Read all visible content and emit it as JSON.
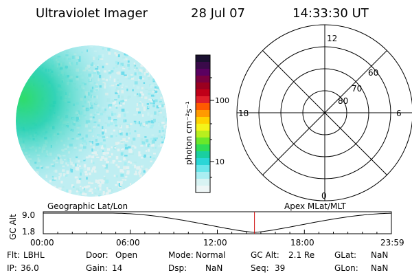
{
  "header": {
    "instrument": "Ultraviolet Imager",
    "date": "28 Jul 07",
    "time": "14:33:30 UT"
  },
  "colorbar": {
    "label": "photon cm⁻²s⁻¹",
    "ticks": [
      "100",
      "10"
    ],
    "colors": [
      "#1a1030",
      "#3a0a4a",
      "#5a0060",
      "#7a0040",
      "#9a0020",
      "#c00018",
      "#e0202a",
      "#ff5a00",
      "#ff9a00",
      "#ffd200",
      "#f4f41a",
      "#b8ef1e",
      "#6ae82a",
      "#2fdd55",
      "#1acfa0",
      "#2ad6d6",
      "#6ae6ea",
      "#aaeef2",
      "#d8f3f3",
      "#eef6f6"
    ]
  },
  "polar": {
    "lat_labels": [
      "80",
      "70",
      "60"
    ],
    "mlt_labels": {
      "top": "12",
      "left": "18",
      "right": "6",
      "bottom": "0"
    }
  },
  "timeline": {
    "axis_label": "GC Alt",
    "left_title": "Geographic Lat/Lon",
    "right_title": "Apex MLat/MLT",
    "y_ticks": [
      "9.0",
      "1.8"
    ],
    "x_ticks": [
      "00:00",
      "06:00",
      "12:00",
      "18:00",
      "23:59"
    ],
    "marker_hour": 14.56
  },
  "footer": {
    "rows": [
      [
        {
          "label": "Flt:",
          "value": "LBHL"
        },
        {
          "label": "Door:",
          "value": "Open"
        },
        {
          "label": "Mode:",
          "value": "Normal"
        },
        {
          "label": "GC Alt:",
          "value": "2.1 Re"
        },
        {
          "label": "GLat:",
          "value": "NaN"
        }
      ],
      [
        {
          "label": "IP:",
          "value": "36.0"
        },
        {
          "label": "Gain:",
          "value": "14"
        },
        {
          "label": "Dsp:",
          "value": "NaN"
        },
        {
          "label": "Seq:",
          "value": "39"
        },
        {
          "label": "GLon:",
          "value": "NaN"
        }
      ]
    ]
  }
}
